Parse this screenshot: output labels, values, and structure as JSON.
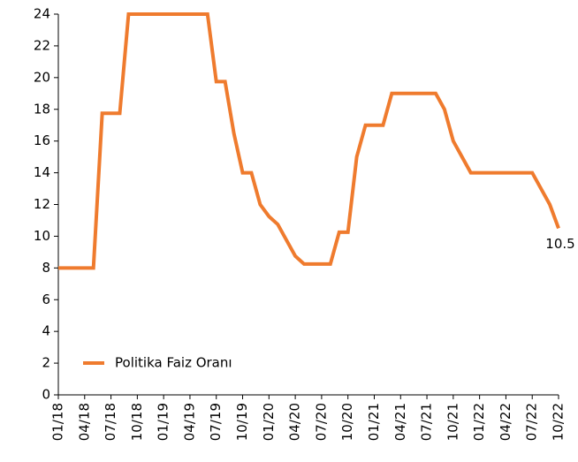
{
  "chart_data": {
    "type": "line",
    "categories": [
      "01/18",
      null,
      null,
      "04/18",
      null,
      null,
      "07/18",
      null,
      null,
      "10/18",
      null,
      null,
      "01/19",
      null,
      null,
      "04/19",
      null,
      null,
      "07/19",
      null,
      null,
      "10/19",
      null,
      null,
      "01/20",
      null,
      null,
      "04/20",
      null,
      null,
      "07/20",
      null,
      null,
      "10/20",
      null,
      null,
      "01/21",
      null,
      null,
      "04/21",
      null,
      null,
      "07/21",
      null,
      null,
      "10/21",
      null,
      null,
      "01/22",
      null,
      null,
      "04/22",
      null,
      null,
      "07/22",
      null,
      null,
      "10/22"
    ],
    "series": [
      {
        "name": "Politika Faiz Oranı",
        "color": "#ef7b2e",
        "values": [
          8,
          8,
          8,
          8,
          8,
          17.75,
          17.75,
          17.75,
          24,
          24,
          24,
          24,
          24,
          24,
          24,
          24,
          24,
          24,
          19.75,
          19.75,
          16.5,
          14,
          14,
          12,
          11.25,
          10.75,
          9.75,
          8.75,
          8.25,
          8.25,
          8.25,
          8.25,
          10.25,
          10.25,
          15,
          17,
          17,
          17,
          19,
          19,
          19,
          19,
          19,
          19,
          18,
          16,
          15,
          14,
          14,
          14,
          14,
          14,
          14,
          14,
          14,
          13,
          12,
          10.5
        ]
      }
    ],
    "ylim": [
      0,
      24
    ],
    "yticks": [
      0,
      2,
      4,
      6,
      8,
      10,
      12,
      14,
      16,
      18,
      20,
      22,
      24
    ],
    "grid": false,
    "legend": "lower left"
  }
}
